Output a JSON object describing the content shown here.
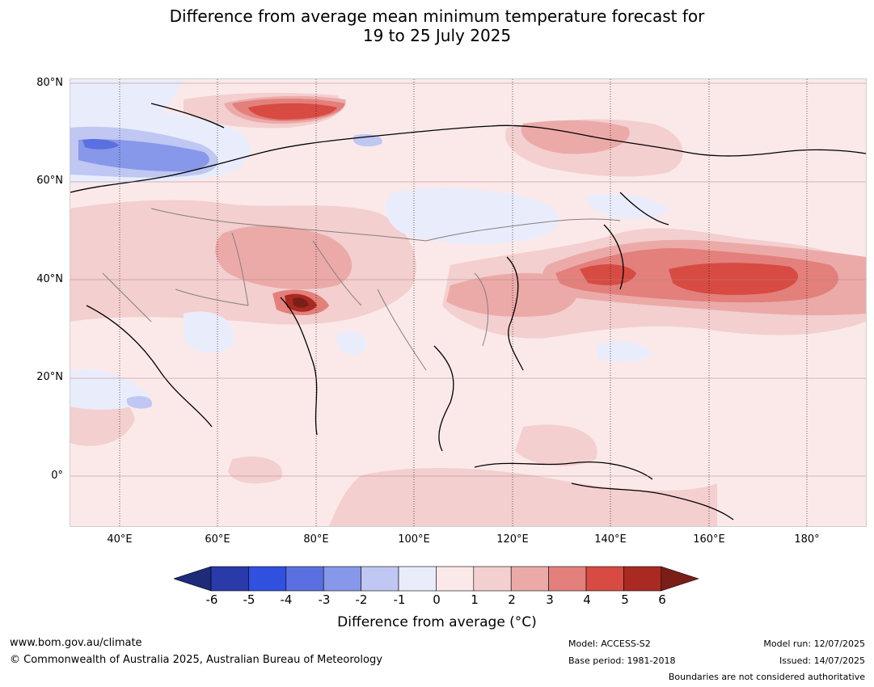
{
  "title_line1": "Difference from average mean minimum temperature forecast for",
  "title_line2": "19 to 25 July 2025",
  "map": {
    "lat_labels": [
      "80°N",
      "60°N",
      "40°N",
      "20°N",
      "0°"
    ],
    "lon_labels": [
      "40°E",
      "60°E",
      "80°E",
      "100°E",
      "120°E",
      "140°E",
      "160°E",
      "180°"
    ]
  },
  "colorbar": {
    "ticks": [
      "-6",
      "-5",
      "-4",
      "-3",
      "-2",
      "-1",
      "0",
      "1",
      "2",
      "3",
      "4",
      "5",
      "6"
    ],
    "colors": [
      "#1e2a7a",
      "#2a3aa8",
      "#3050e0",
      "#5a70e0",
      "#8797ea",
      "#bfc7f2",
      "#e9ecfb",
      "#fbe9e9",
      "#f3cfcf",
      "#ebaaa8",
      "#e3807c",
      "#d74b42",
      "#a92a22",
      "#7a1e18"
    ],
    "label": "Difference from average (°C)"
  },
  "footer": {
    "url": "www.bom.gov.au/climate",
    "copyright": "© Commonwealth of Australia 2025, Australian Bureau of Meteorology",
    "model": "Model: ACCESS-S2",
    "base_period": "Base period: 1981-2018",
    "model_run": "Model run: 12/07/2025",
    "issued": "Issued: 14/07/2025",
    "disclaimer": "Boundaries are not considered authoritative"
  }
}
